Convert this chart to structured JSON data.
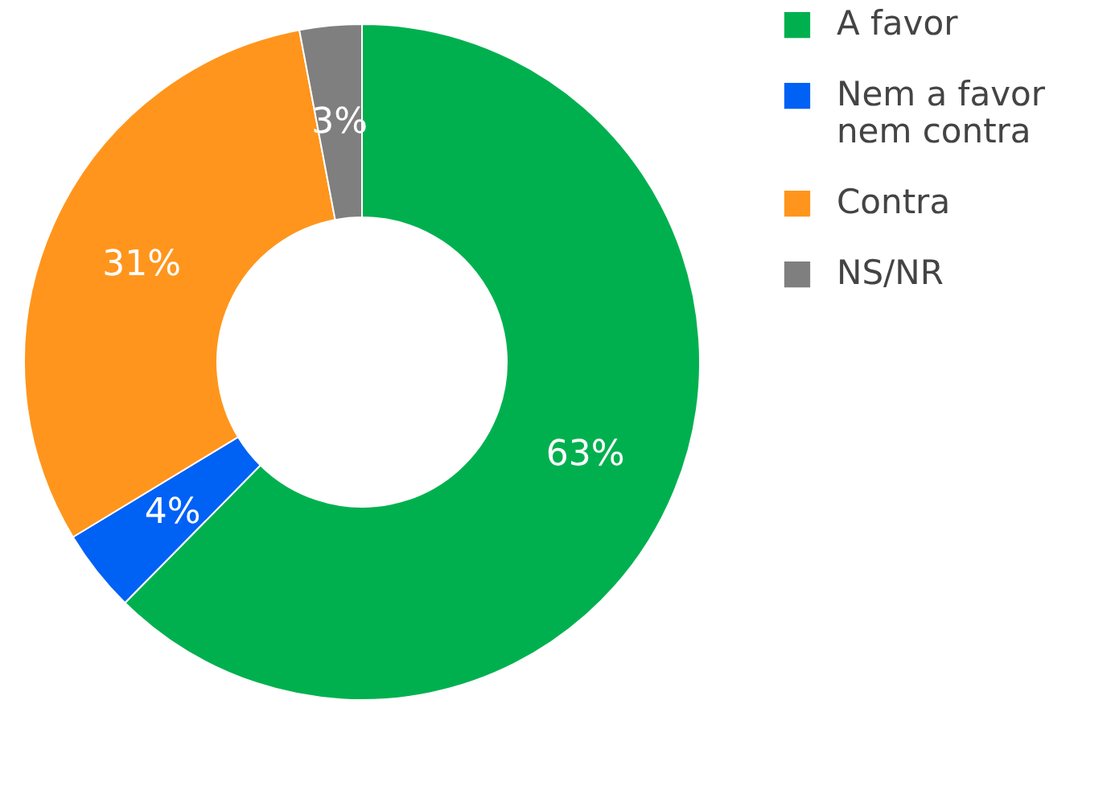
{
  "chart_data": {
    "type": "donut",
    "categories": [
      "A favor",
      "Nem a favor nem contra",
      "Contra",
      "NS/NR"
    ],
    "values": [
      63,
      4,
      31,
      3
    ],
    "colors": [
      "#00b04f",
      "#0061f5",
      "#ff951c",
      "#7f7f7f"
    ],
    "value_labels": [
      "63%",
      "4%",
      "31%",
      "3%"
    ],
    "legend": "right"
  }
}
